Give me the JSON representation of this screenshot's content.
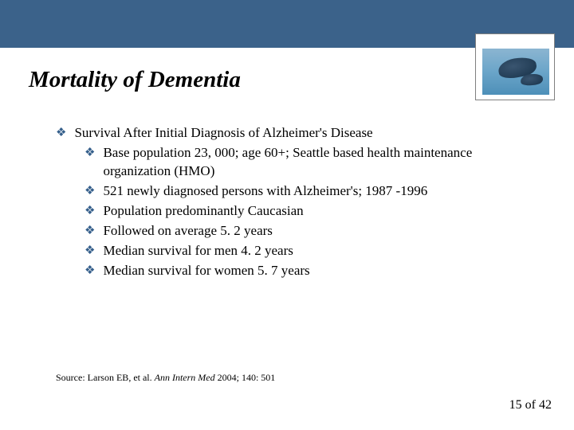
{
  "header": {
    "bar_color": "#3b628a",
    "decorative_image": "whales"
  },
  "title": "Mortality of Dementia",
  "content": {
    "main_point": "Survival After Initial Diagnosis of Alzheimer's Disease",
    "sub_points": [
      "Base population 23, 000; age 60+; Seattle based health maintenance organization (HMO)",
      "521 newly diagnosed persons with Alzheimer's; 1987 -1996",
      "Population predominantly Caucasian",
      "Followed on average 5. 2 years",
      "Median survival for men 4. 2 years",
      "Median survival for women 5. 7 years"
    ]
  },
  "source": {
    "prefix": "Source: Larson EB, et al. ",
    "journal": "Ann Intern Med ",
    "suffix": "2004; 140: 501"
  },
  "pager": {
    "current": "15",
    "sep": " of ",
    "total": "42"
  },
  "style": {
    "bullet_color": "#355f8b",
    "bullet_char": "❖",
    "title_fontsize": 29,
    "body_fontsize": 17,
    "source_fontsize": 12,
    "pager_fontsize": 16,
    "background_color": "#ffffff",
    "text_color": "#000000"
  }
}
